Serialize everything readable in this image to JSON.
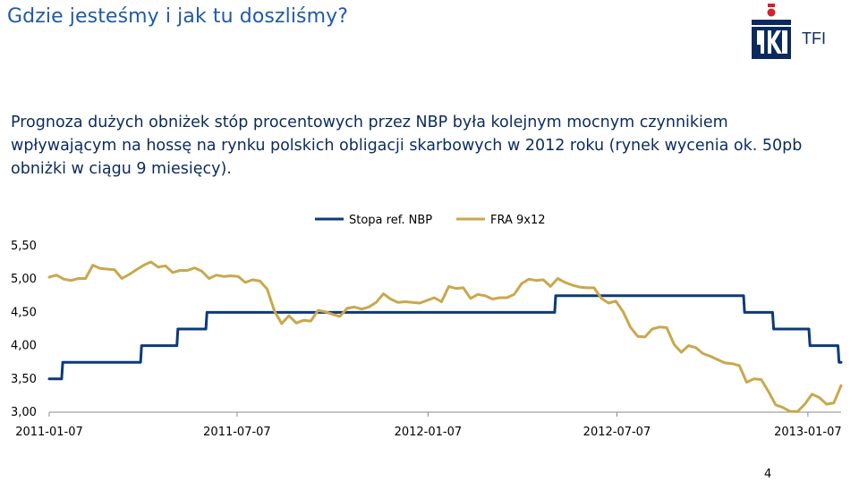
{
  "slide": {
    "title": "Gdzie jesteśmy i jak tu doszliśmy?",
    "logo_text": "TFI",
    "lead_text": "Prognoza dużych obniżek stóp procentowych przez NBP była kolejnym mocnym czynnikiem wpływającym na hossę na rynku polskich obligacji skarbowych w 2012 roku (rynek wycenia ok. 50pb obniżki w ciągu 9 miesięcy).",
    "page_number": "4"
  },
  "colors": {
    "title": "#1f5aa6",
    "text": "#0b2b5e",
    "series_ref": "#0d3a78",
    "series_fra": "#c9a84c",
    "logo_red": "#d4212e",
    "logo_navy": "#0b2b5e"
  },
  "chart_data": {
    "type": "line",
    "title": "",
    "xlabel": "",
    "ylabel": "",
    "ylim": [
      3.0,
      5.5
    ],
    "xlim": [
      "2011-01-07",
      "2013-02-08"
    ],
    "y_ticks": [
      "5,50",
      "5,00",
      "4,50",
      "4,00",
      "3,50",
      "3,00"
    ],
    "y_tick_values": [
      5.5,
      5.0,
      4.5,
      4.0,
      3.5,
      3.0
    ],
    "x_ticks": [
      "2011-01-07",
      "2011-07-07",
      "2012-01-07",
      "2012-07-07",
      "2013-01-07"
    ],
    "grid": false,
    "legend": "top",
    "series": [
      {
        "name": "Stopa ref. NBP",
        "color": "#0d3a78",
        "points": [
          [
            "2011-01-07",
            3.5
          ],
          [
            "2011-01-19",
            3.5
          ],
          [
            "2011-01-20",
            3.75
          ],
          [
            "2011-04-05",
            3.75
          ],
          [
            "2011-04-06",
            4.0
          ],
          [
            "2011-05-10",
            4.0
          ],
          [
            "2011-05-11",
            4.25
          ],
          [
            "2011-06-07",
            4.25
          ],
          [
            "2011-06-08",
            4.5
          ],
          [
            "2012-05-08",
            4.5
          ],
          [
            "2012-05-09",
            4.75
          ],
          [
            "2012-11-06",
            4.75
          ],
          [
            "2012-11-07",
            4.5
          ],
          [
            "2012-12-04",
            4.5
          ],
          [
            "2012-12-05",
            4.25
          ],
          [
            "2013-01-08",
            4.25
          ],
          [
            "2013-01-09",
            4.0
          ],
          [
            "2013-02-05",
            4.0
          ],
          [
            "2013-02-06",
            3.75
          ],
          [
            "2013-02-08",
            3.75
          ]
        ]
      },
      {
        "name": "FRA 9x12",
        "color": "#c9a84c",
        "points": [
          [
            "2011-01-07",
            5.03
          ],
          [
            "2011-01-14",
            5.06
          ],
          [
            "2011-01-21",
            5.0
          ],
          [
            "2011-01-28",
            4.98
          ],
          [
            "2011-02-04",
            5.01
          ],
          [
            "2011-02-11",
            5.01
          ],
          [
            "2011-02-18",
            5.21
          ],
          [
            "2011-02-25",
            5.16
          ],
          [
            "2011-03-04",
            5.15
          ],
          [
            "2011-03-11",
            5.14
          ],
          [
            "2011-03-18",
            5.01
          ],
          [
            "2011-03-25",
            5.07
          ],
          [
            "2011-04-01",
            5.14
          ],
          [
            "2011-04-08",
            5.21
          ],
          [
            "2011-04-15",
            5.26
          ],
          [
            "2011-04-22",
            5.18
          ],
          [
            "2011-04-29",
            5.2
          ],
          [
            "2011-05-06",
            5.1
          ],
          [
            "2011-05-13",
            5.13
          ],
          [
            "2011-05-20",
            5.13
          ],
          [
            "2011-05-27",
            5.17
          ],
          [
            "2011-06-03",
            5.12
          ],
          [
            "2011-06-10",
            5.01
          ],
          [
            "2011-06-17",
            5.06
          ],
          [
            "2011-06-24",
            5.04
          ],
          [
            "2011-07-01",
            5.05
          ],
          [
            "2011-07-08",
            5.04
          ],
          [
            "2011-07-15",
            4.95
          ],
          [
            "2011-07-22",
            4.99
          ],
          [
            "2011-07-29",
            4.97
          ],
          [
            "2011-08-05",
            4.85
          ],
          [
            "2011-08-12",
            4.52
          ],
          [
            "2011-08-19",
            4.33
          ],
          [
            "2011-08-26",
            4.45
          ],
          [
            "2011-09-02",
            4.34
          ],
          [
            "2011-09-09",
            4.38
          ],
          [
            "2011-09-16",
            4.37
          ],
          [
            "2011-09-23",
            4.53
          ],
          [
            "2011-09-30",
            4.51
          ],
          [
            "2011-10-07",
            4.47
          ],
          [
            "2011-10-14",
            4.44
          ],
          [
            "2011-10-21",
            4.56
          ],
          [
            "2011-10-28",
            4.58
          ],
          [
            "2011-11-04",
            4.55
          ],
          [
            "2011-11-11",
            4.58
          ],
          [
            "2011-11-18",
            4.65
          ],
          [
            "2011-11-25",
            4.78
          ],
          [
            "2011-12-02",
            4.7
          ],
          [
            "2011-12-09",
            4.65
          ],
          [
            "2011-12-16",
            4.66
          ],
          [
            "2011-12-23",
            4.65
          ],
          [
            "2011-12-30",
            4.64
          ],
          [
            "2012-01-06",
            4.68
          ],
          [
            "2012-01-13",
            4.72
          ],
          [
            "2012-01-20",
            4.66
          ],
          [
            "2012-01-27",
            4.89
          ],
          [
            "2012-02-03",
            4.86
          ],
          [
            "2012-02-10",
            4.87
          ],
          [
            "2012-02-17",
            4.71
          ],
          [
            "2012-02-24",
            4.77
          ],
          [
            "2012-03-02",
            4.75
          ],
          [
            "2012-03-09",
            4.7
          ],
          [
            "2012-03-16",
            4.72
          ],
          [
            "2012-03-23",
            4.72
          ],
          [
            "2012-03-30",
            4.77
          ],
          [
            "2012-04-06",
            4.93
          ],
          [
            "2012-04-13",
            5.0
          ],
          [
            "2012-04-20",
            4.98
          ],
          [
            "2012-04-27",
            4.99
          ],
          [
            "2012-05-04",
            4.89
          ],
          [
            "2012-05-11",
            5.01
          ],
          [
            "2012-05-18",
            4.95
          ],
          [
            "2012-05-25",
            4.91
          ],
          [
            "2012-06-01",
            4.88
          ],
          [
            "2012-06-08",
            4.87
          ],
          [
            "2012-06-15",
            4.87
          ],
          [
            "2012-06-22",
            4.71
          ],
          [
            "2012-06-29",
            4.64
          ],
          [
            "2012-07-06",
            4.67
          ],
          [
            "2012-07-13",
            4.51
          ],
          [
            "2012-07-20",
            4.28
          ],
          [
            "2012-07-27",
            4.14
          ],
          [
            "2012-08-03",
            4.13
          ],
          [
            "2012-08-10",
            4.25
          ],
          [
            "2012-08-17",
            4.28
          ],
          [
            "2012-08-24",
            4.27
          ],
          [
            "2012-08-31",
            4.02
          ],
          [
            "2012-09-07",
            3.9
          ],
          [
            "2012-09-14",
            4.0
          ],
          [
            "2012-09-21",
            3.97
          ],
          [
            "2012-09-28",
            3.88
          ],
          [
            "2012-10-05",
            3.84
          ],
          [
            "2012-10-12",
            3.79
          ],
          [
            "2012-10-19",
            3.74
          ],
          [
            "2012-10-26",
            3.73
          ],
          [
            "2012-11-02",
            3.7
          ],
          [
            "2012-11-09",
            3.45
          ],
          [
            "2012-11-16",
            3.5
          ],
          [
            "2012-11-23",
            3.49
          ],
          [
            "2012-11-30",
            3.31
          ],
          [
            "2012-12-07",
            3.11
          ],
          [
            "2012-12-14",
            3.07
          ],
          [
            "2012-12-21",
            3.01
          ],
          [
            "2012-12-28",
            3.01
          ],
          [
            "2013-01-04",
            3.12
          ],
          [
            "2013-01-11",
            3.27
          ],
          [
            "2013-01-18",
            3.22
          ],
          [
            "2013-01-25",
            3.12
          ],
          [
            "2013-02-01",
            3.14
          ],
          [
            "2013-02-08",
            3.4
          ]
        ]
      }
    ]
  }
}
